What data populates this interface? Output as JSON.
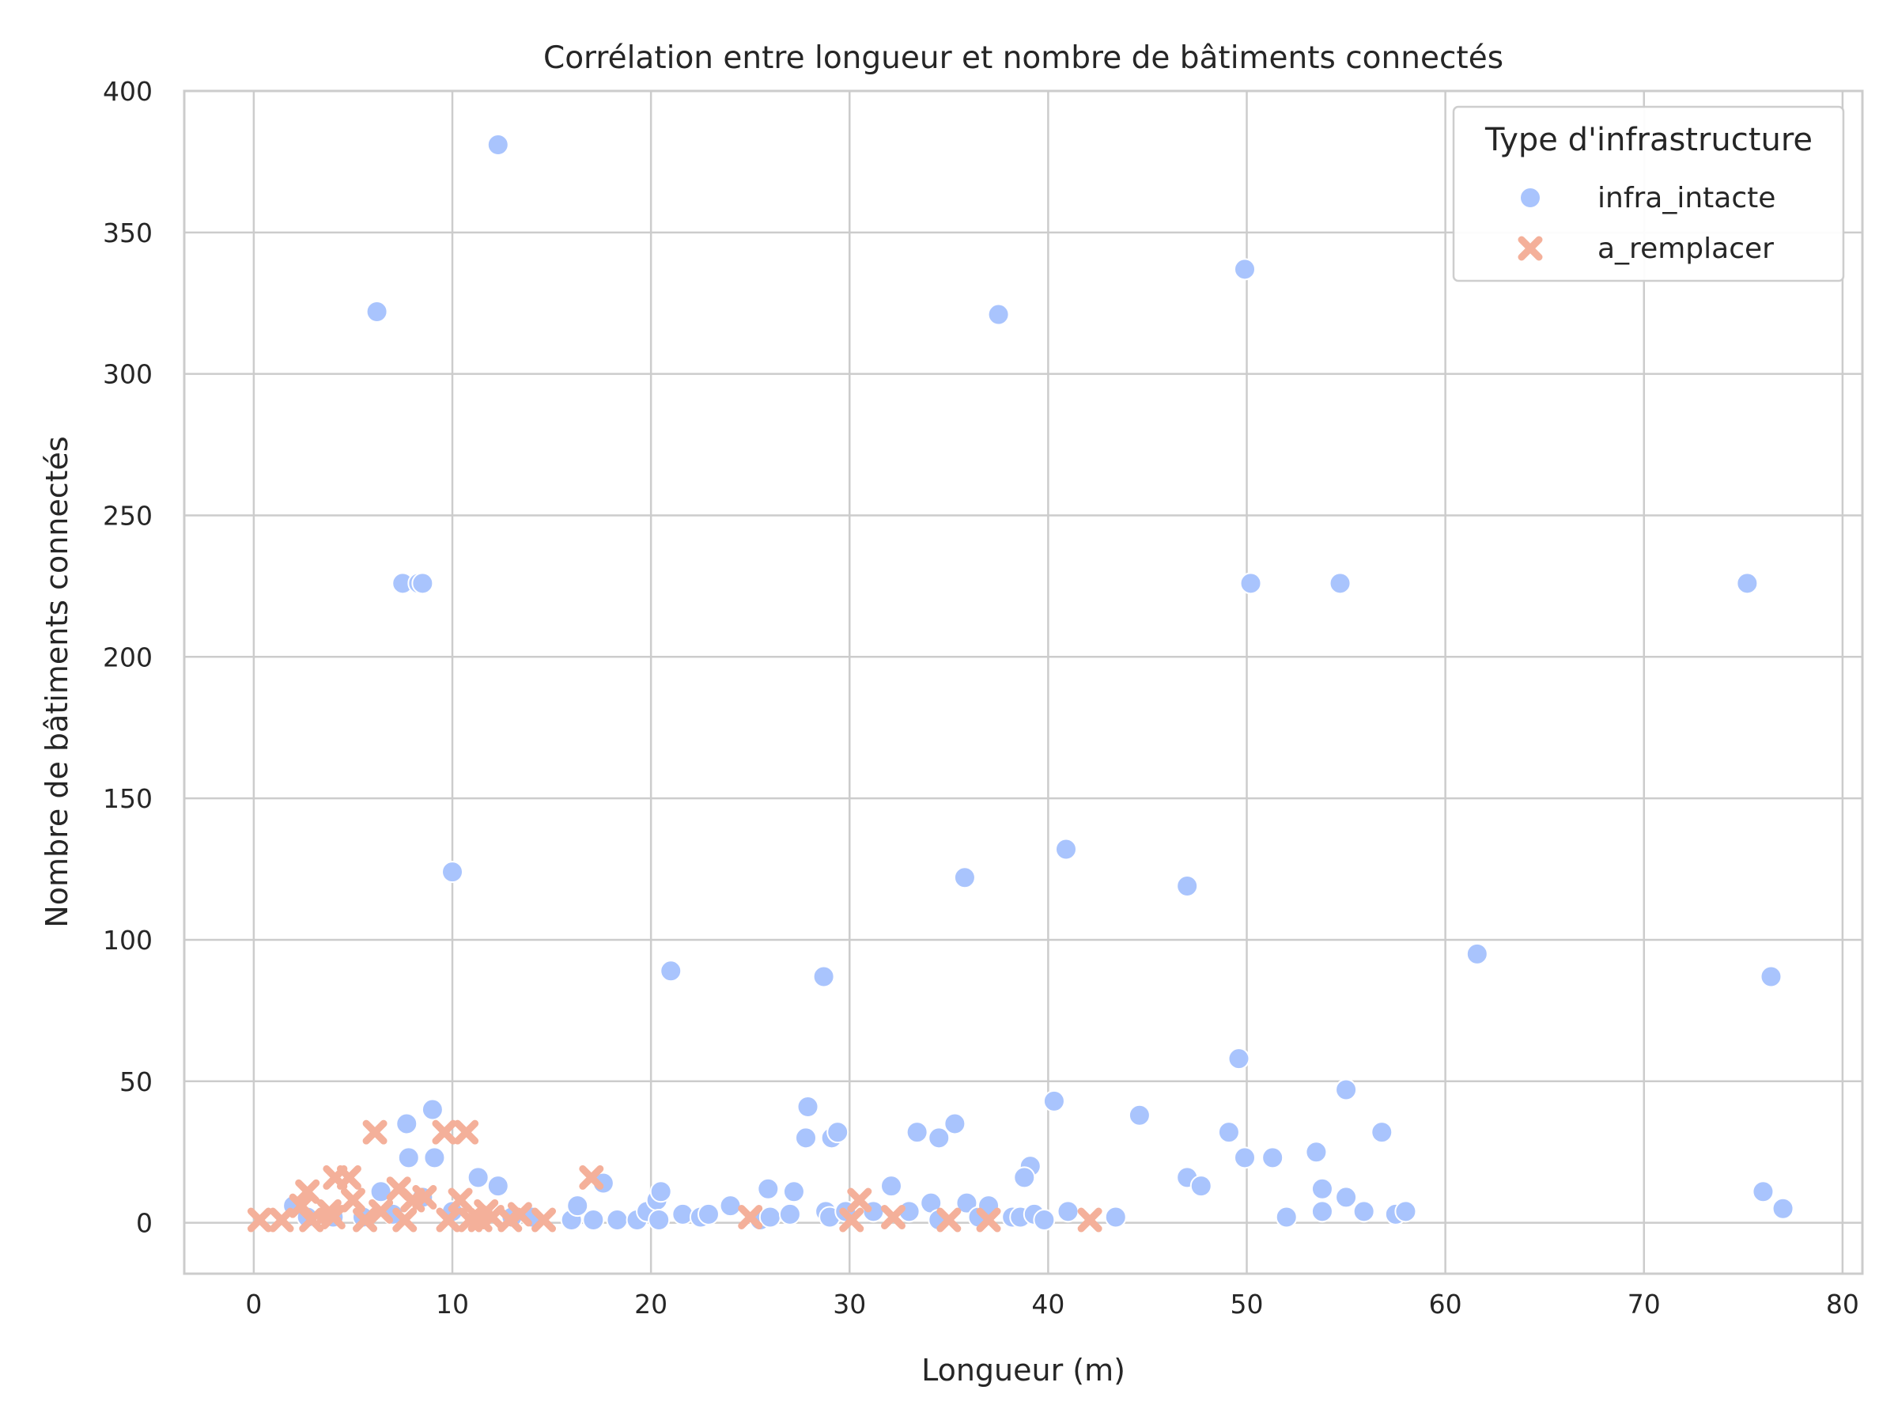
{
  "chart_data": {
    "type": "scatter",
    "title": "Corrélation entre longueur et nombre de bâtiments connectés",
    "xlabel": "Longueur (m)",
    "ylabel": "Nombre de bâtiments connectés",
    "xlim": [
      -3.5,
      81
    ],
    "ylim": [
      -18,
      400
    ],
    "xticks": [
      0,
      10,
      20,
      30,
      40,
      50,
      60,
      70,
      80
    ],
    "yticks": [
      0,
      50,
      100,
      150,
      200,
      250,
      300,
      350,
      400
    ],
    "grid": true,
    "legend": {
      "title": "Type d'infrastructure",
      "position": "top-right"
    },
    "series": [
      {
        "name": "infra_intacte",
        "marker": "circle",
        "color": "#a9c4fd",
        "points": [
          [
            12.3,
            381
          ],
          [
            6.2,
            322
          ],
          [
            37.5,
            321
          ],
          [
            49.9,
            337
          ],
          [
            7.5,
            226
          ],
          [
            8.3,
            226
          ],
          [
            8.5,
            226
          ],
          [
            50.2,
            226
          ],
          [
            54.7,
            226
          ],
          [
            75.2,
            226
          ],
          [
            10.0,
            124
          ],
          [
            35.8,
            122
          ],
          [
            40.9,
            132
          ],
          [
            47.0,
            119
          ],
          [
            21.0,
            89
          ],
          [
            28.7,
            87
          ],
          [
            61.6,
            95
          ],
          [
            76.4,
            87
          ],
          [
            49.6,
            58
          ],
          [
            55.0,
            47
          ],
          [
            40.3,
            43
          ],
          [
            44.6,
            38
          ],
          [
            9.0,
            40
          ],
          [
            7.7,
            35
          ],
          [
            7.8,
            23
          ],
          [
            9.1,
            23
          ],
          [
            27.9,
            41
          ],
          [
            27.8,
            30
          ],
          [
            29.1,
            30
          ],
          [
            29.4,
            32
          ],
          [
            33.4,
            32
          ],
          [
            34.5,
            30
          ],
          [
            35.3,
            35
          ],
          [
            39.1,
            20
          ],
          [
            38.8,
            16
          ],
          [
            49.1,
            32
          ],
          [
            49.9,
            23
          ],
          [
            51.3,
            23
          ],
          [
            53.5,
            25
          ],
          [
            56.8,
            32
          ],
          [
            47.0,
            16
          ],
          [
            47.7,
            13
          ],
          [
            53.8,
            12
          ],
          [
            55.0,
            9
          ],
          [
            53.8,
            4
          ],
          [
            55.9,
            4
          ],
          [
            57.5,
            3
          ],
          [
            58.0,
            4
          ],
          [
            52.0,
            2
          ],
          [
            76.0,
            11
          ],
          [
            77.0,
            5
          ],
          [
            11.3,
            16
          ],
          [
            12.3,
            13
          ],
          [
            6.4,
            11
          ],
          [
            8.5,
            9
          ],
          [
            2.0,
            6
          ],
          [
            2.7,
            2
          ],
          [
            4.0,
            2
          ],
          [
            5.5,
            2
          ],
          [
            7.0,
            3
          ],
          [
            10.0,
            4
          ],
          [
            13.0,
            2
          ],
          [
            14.0,
            2
          ],
          [
            16.0,
            1
          ],
          [
            16.3,
            6
          ],
          [
            17.1,
            1
          ],
          [
            17.6,
            14
          ],
          [
            18.3,
            1
          ],
          [
            19.3,
            1
          ],
          [
            19.8,
            4
          ],
          [
            20.3,
            8
          ],
          [
            20.5,
            11
          ],
          [
            20.4,
            1
          ],
          [
            21.6,
            3
          ],
          [
            22.5,
            2
          ],
          [
            22.9,
            3
          ],
          [
            24.0,
            6
          ],
          [
            25.5,
            1
          ],
          [
            25.9,
            12
          ],
          [
            26.0,
            2
          ],
          [
            27.0,
            3
          ],
          [
            27.2,
            11
          ],
          [
            28.8,
            4
          ],
          [
            29.0,
            2
          ],
          [
            29.8,
            4
          ],
          [
            31.2,
            4
          ],
          [
            32.1,
            13
          ],
          [
            33.0,
            4
          ],
          [
            34.1,
            7
          ],
          [
            34.5,
            1
          ],
          [
            35.9,
            7
          ],
          [
            36.5,
            2
          ],
          [
            37.0,
            6
          ],
          [
            38.2,
            2
          ],
          [
            38.6,
            2
          ],
          [
            39.3,
            3
          ],
          [
            39.8,
            1
          ],
          [
            41.0,
            4
          ],
          [
            43.4,
            2
          ]
        ]
      },
      {
        "name": "a_remplacer",
        "marker": "x",
        "color": "#f4b09a",
        "points": [
          [
            0.3,
            1
          ],
          [
            1.4,
            1
          ],
          [
            2.7,
            11
          ],
          [
            2.9,
            1
          ],
          [
            2.4,
            6
          ],
          [
            3.8,
            4
          ],
          [
            4.1,
            16
          ],
          [
            4.8,
            16
          ],
          [
            4.0,
            2
          ],
          [
            5.0,
            8
          ],
          [
            5.6,
            1
          ],
          [
            6.1,
            32
          ],
          [
            6.4,
            4
          ],
          [
            7.3,
            12
          ],
          [
            7.6,
            1
          ],
          [
            8.0,
            8
          ],
          [
            8.6,
            9
          ],
          [
            9.6,
            32
          ],
          [
            9.8,
            1
          ],
          [
            10.4,
            8
          ],
          [
            10.7,
            32
          ],
          [
            10.9,
            1
          ],
          [
            11.4,
            1
          ],
          [
            11.7,
            4
          ],
          [
            12.0,
            2
          ],
          [
            12.9,
            1
          ],
          [
            13.4,
            3
          ],
          [
            14.6,
            1
          ],
          [
            17.0,
            16
          ],
          [
            25.0,
            2
          ],
          [
            30.1,
            1
          ],
          [
            30.5,
            8
          ],
          [
            32.2,
            2
          ],
          [
            35.0,
            1
          ],
          [
            37.0,
            1
          ],
          [
            42.1,
            1
          ]
        ]
      }
    ]
  }
}
